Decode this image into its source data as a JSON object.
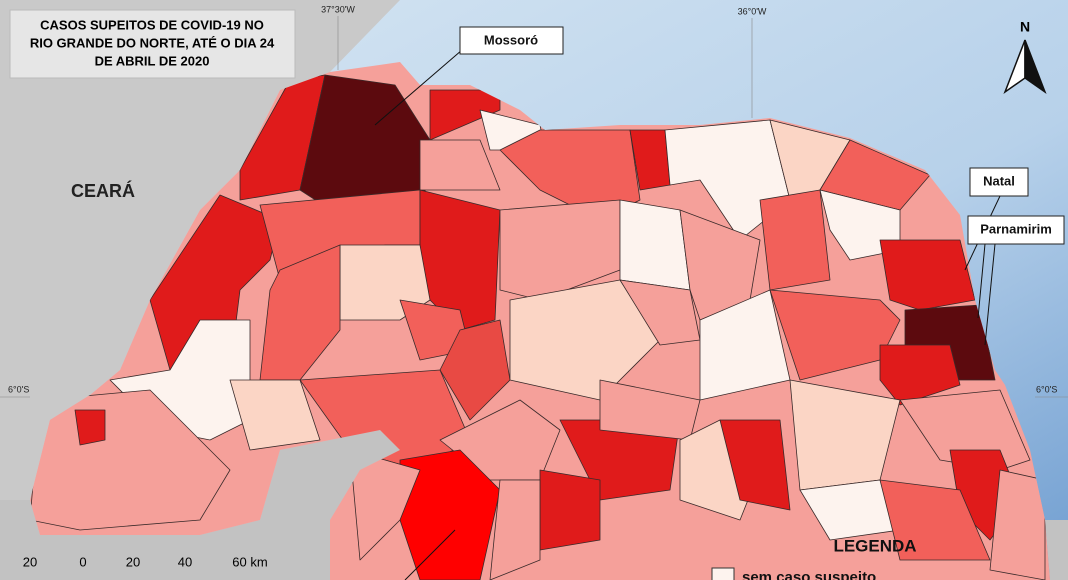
{
  "title_lines": [
    "CASOS SUPEITOS DE COVID-19 NO",
    "RIO GRANDE DO NORTE, ATÉ O DIA 24",
    "DE ABRIL DE 2020"
  ],
  "labels": {
    "mossoro": "Mossoró",
    "natal": "Natal",
    "parnamirim": "Parnamirim",
    "ceara": "CEARÁ"
  },
  "graticule": {
    "lon": [
      "37°30'W",
      "36°0'W"
    ],
    "lat": [
      "6°0'S",
      "6°0'S"
    ]
  },
  "north": "N",
  "scale_bar": [
    "20",
    "0",
    "20",
    "40",
    "60 km"
  ],
  "legend": {
    "title": "LEGENDA",
    "items": [
      "sem caso suspeito"
    ]
  }
}
